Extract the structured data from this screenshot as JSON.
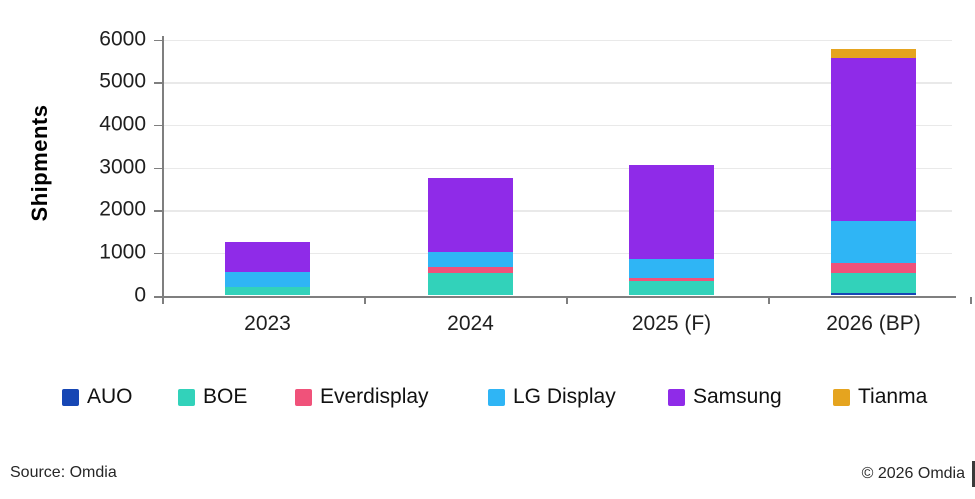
{
  "figure": {
    "y_axis_title": "Shipments",
    "source_text": "Source: Omdia",
    "copyright_text": "© 2026 Omdia"
  },
  "axis": {
    "y_min": 0,
    "y_max": 6000,
    "y_interval": 1000,
    "y_tick_labels": [
      "0",
      "1000",
      "2000",
      "3000",
      "4000",
      "5000",
      "6000"
    ]
  },
  "chart_data": {
    "type": "bar",
    "stacked": true,
    "title": "",
    "xlabel": "",
    "ylabel": "Shipments",
    "ylim": [
      0,
      6000
    ],
    "ytick_interval": 1000,
    "grid": true,
    "legend_position": "bottom",
    "categories": [
      "2023",
      "2024",
      "2025 (F)",
      "2026 (BP)"
    ],
    "series": [
      {
        "name": "AUO",
        "color": "#1646b4",
        "values": [
          0,
          0,
          0,
          50
        ]
      },
      {
        "name": "BOE",
        "color": "#32d2ba",
        "values": [
          190,
          530,
          340,
          480
        ]
      },
      {
        "name": "Everdisplay",
        "color": "#f0527a",
        "values": [
          0,
          130,
          80,
          230
        ]
      },
      {
        "name": "LG Display",
        "color": "#2fb5f5",
        "values": [
          370,
          350,
          430,
          980
        ]
      },
      {
        "name": "Samsung",
        "color": "#8f2be8",
        "values": [
          700,
          1740,
          2220,
          3820
        ]
      },
      {
        "name": "Tianma",
        "color": "#e5a41f",
        "values": [
          0,
          0,
          0,
          230
        ]
      }
    ]
  },
  "style": {
    "axis_line_color": "#7f7f7f",
    "gridline_color": "#e9e9e9",
    "background_color": "#ffffff"
  }
}
